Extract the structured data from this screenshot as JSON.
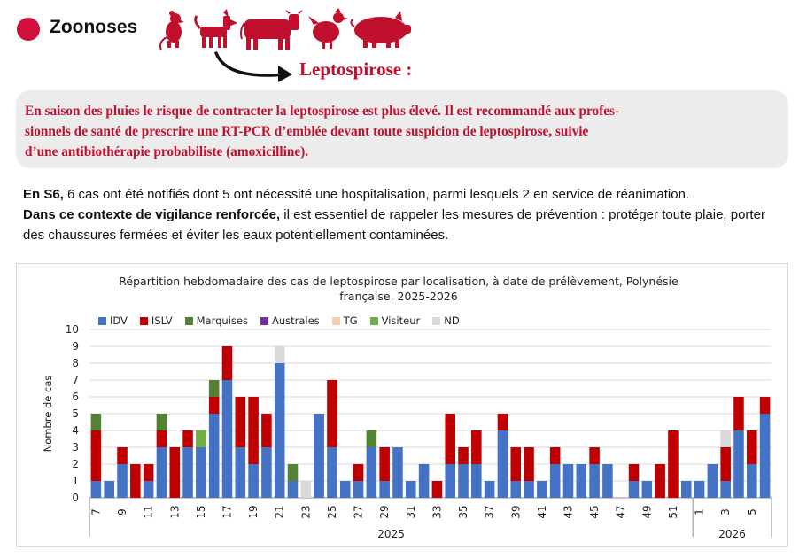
{
  "header": {
    "title": "Zoonoses",
    "accent_color": "#d0103a",
    "animal_icons": [
      "rat-icon",
      "dog-icon",
      "cow-icon",
      "chicken-icon",
      "pig-icon"
    ],
    "subtitle": "Leptospirose :"
  },
  "alert": {
    "lines": [
      "En saison des pluies le risque de contracter la leptospirose est plus élevé. Il est recommandé aux profes-",
      "sionnels de santé de prescrire une RT-PCR d’emblée devant toute suspicion de leptospirose, suivie",
      "d’une antibiothérapie probabiliste (amoxicilline)."
    ]
  },
  "body": {
    "p1_bold": "En S6,",
    "p1_rest": " 6 cas ont été notifiés dont 5 ont nécessité une hospitalisation, parmi lesquels 2 en service de réanimation.",
    "p2_bold": "Dans ce contexte de vigilance renforcée,",
    "p2_rest": " il est essentiel de rappeler les mesures de prévention : protéger toute plaie, porter des chaussures fermées et éviter les eaux potentiellement contaminées."
  },
  "chart_data": {
    "type": "bar",
    "stacked": true,
    "title_line1": "Répartition hebdomadaire des cas de leptospirose par localisation, à date de prélèvement, Polynésie",
    "title_line2": "française, 2025-2026",
    "ylabel": "Nombre de cas",
    "ylim": [
      0,
      10
    ],
    "yticks": [
      "0",
      "1",
      "2",
      "3",
      "4",
      "5",
      "6",
      "7",
      "8",
      "9",
      "10"
    ],
    "legend_position": "top-left",
    "legend": [
      "IDV",
      "ISLV",
      "Marquises",
      "Australes",
      "TG",
      "Visiteur",
      "ND"
    ],
    "colors": {
      "IDV": "#4472c4",
      "ISLV": "#c00000",
      "Marquises": "#548235",
      "Australes": "#7030a0",
      "TG": "#f8cbad",
      "Visiteur": "#70ad47",
      "ND": "#d9d9d9"
    },
    "tick_labels_2025": [
      "7",
      "9",
      "11",
      "13",
      "15",
      "17",
      "19",
      "21",
      "23",
      "25",
      "27",
      "29",
      "31",
      "33",
      "35",
      "37",
      "39",
      "41",
      "43",
      "45",
      "47",
      "49",
      "51"
    ],
    "tick_labels_2026": [
      "1",
      "3",
      "5"
    ],
    "year_labels": [
      "2025",
      "2026"
    ],
    "weeks_2025": [
      7,
      8,
      9,
      10,
      11,
      12,
      13,
      14,
      15,
      16,
      17,
      18,
      19,
      20,
      21,
      22,
      23,
      24,
      25,
      26,
      27,
      28,
      29,
      30,
      31,
      32,
      33,
      34,
      35,
      36,
      37,
      38,
      39,
      40,
      41,
      42,
      43,
      44,
      45,
      46,
      47,
      48,
      49,
      50,
      51,
      52
    ],
    "weeks_2026": [
      1,
      2,
      3,
      4,
      5,
      6
    ],
    "series": [
      {
        "name": "IDV",
        "values": [
          1,
          1,
          2,
          0,
          1,
          3,
          0,
          3,
          3,
          5,
          7,
          3,
          2,
          3,
          8,
          1,
          0,
          5,
          3,
          1,
          1,
          3,
          1,
          3,
          1,
          2,
          0,
          2,
          2,
          2,
          1,
          4,
          1,
          1,
          1,
          2,
          2,
          2,
          2,
          2,
          0,
          1,
          1,
          0,
          0,
          1,
          1,
          2,
          1,
          4,
          2,
          5
        ]
      },
      {
        "name": "ISLV",
        "values": [
          3,
          0,
          1,
          2,
          1,
          1,
          3,
          1,
          0,
          1,
          2,
          3,
          4,
          2,
          0,
          0,
          0,
          0,
          4,
          0,
          1,
          0,
          2,
          0,
          0,
          0,
          1,
          3,
          1,
          2,
          0,
          1,
          2,
          2,
          0,
          1,
          0,
          0,
          1,
          0,
          0,
          1,
          0,
          2,
          4,
          0,
          0,
          0,
          2,
          2,
          2,
          1
        ]
      },
      {
        "name": "Marquises",
        "values": [
          1,
          0,
          0,
          0,
          0,
          1,
          0,
          0,
          0,
          1,
          0,
          0,
          0,
          0,
          0,
          1,
          0,
          0,
          0,
          0,
          0,
          1,
          0,
          0,
          0,
          0,
          0,
          0,
          0,
          0,
          0,
          0,
          0,
          0,
          0,
          0,
          0,
          0,
          0,
          0,
          0,
          0,
          0,
          0,
          0,
          0,
          0,
          0,
          0,
          0,
          0,
          0
        ]
      },
      {
        "name": "Australes",
        "values": [
          0,
          0,
          0,
          0,
          0,
          0,
          0,
          0,
          0,
          0,
          0,
          0,
          0,
          0,
          0,
          0,
          0,
          0,
          0,
          0,
          0,
          0,
          0,
          0,
          0,
          0,
          0,
          0,
          0,
          0,
          0,
          0,
          0,
          0,
          0,
          0,
          0,
          0,
          0,
          0,
          0,
          0,
          0,
          0,
          0,
          0,
          0,
          0,
          0,
          0,
          0,
          0
        ]
      },
      {
        "name": "TG",
        "values": [
          0,
          0,
          0,
          0,
          0,
          0,
          0,
          0,
          0,
          0,
          0,
          0,
          0,
          0,
          0,
          0,
          0,
          0,
          0,
          0,
          0,
          0,
          0,
          0,
          0,
          0,
          0,
          0,
          0,
          0,
          0,
          0,
          0,
          0,
          0,
          0,
          0,
          0,
          0,
          0,
          0,
          0,
          0,
          0,
          0,
          0,
          0,
          0,
          0,
          0,
          0,
          0
        ]
      },
      {
        "name": "Visiteur",
        "values": [
          0,
          0,
          0,
          0,
          0,
          0,
          0,
          0,
          1,
          0,
          0,
          0,
          0,
          0,
          0,
          0,
          0,
          0,
          0,
          0,
          0,
          0,
          0,
          0,
          0,
          0,
          0,
          0,
          0,
          0,
          0,
          0,
          0,
          0,
          0,
          0,
          0,
          0,
          0,
          0,
          0,
          0,
          0,
          0,
          0,
          0,
          0,
          0,
          0,
          0,
          0,
          0
        ]
      },
      {
        "name": "ND",
        "values": [
          0,
          0,
          0,
          0,
          0,
          0,
          0,
          0,
          0,
          0,
          0,
          0,
          0,
          0,
          1,
          0,
          1,
          0,
          0,
          0,
          0,
          0,
          0,
          0,
          0,
          0,
          0,
          0,
          0,
          0,
          0,
          0,
          0,
          0,
          0,
          0,
          0,
          0,
          0,
          0,
          0,
          0,
          0,
          0,
          0,
          0,
          0,
          0,
          1,
          0,
          0,
          0
        ]
      }
    ]
  }
}
